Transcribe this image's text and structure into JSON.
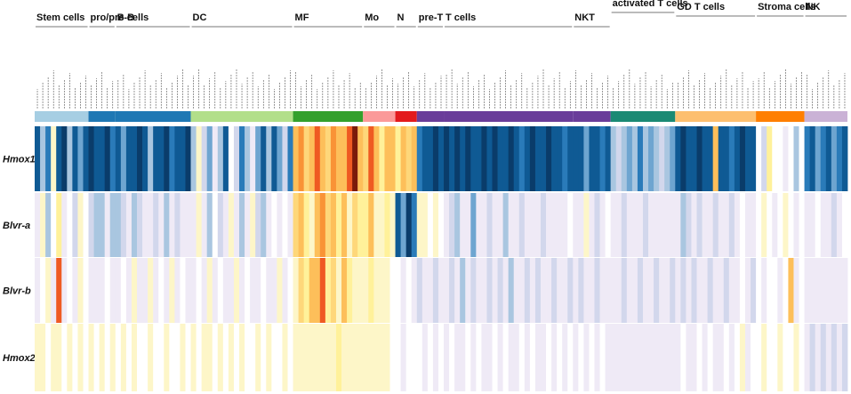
{
  "chart_data": {
    "type": "heatmap",
    "title": "",
    "color_scale": {
      "description": "diverging blue (low) to white to yellow/orange/red (high), dark = strongest",
      "colors": [
        "#0a3c6a",
        "#0f5a94",
        "#2a7bb9",
        "#6ea5d0",
        "#a9c6e0",
        "#d2d7ec",
        "#efeaf6",
        "#ffffff",
        "#fdf6c8",
        "#fff19a",
        "#fed77a",
        "#fdbf5a",
        "#f99336",
        "#ef5a22",
        "#7a1a0a"
      ]
    },
    "genes": [
      "Hmox1",
      "Blvr-a",
      "Blvr-b",
      "Hmox2"
    ],
    "groups": [
      {
        "name": "Stem cells",
        "count": 10,
        "color": "#a6cee3"
      },
      {
        "name": "pro/pre-B",
        "count": 5,
        "color": "#1f78b4"
      },
      {
        "name": "B cells",
        "count": 14,
        "color": "#1f78b4"
      },
      {
        "name": "DC",
        "count": 19,
        "color": "#b2df8a"
      },
      {
        "name": "MF",
        "count": 13,
        "color": "#33a02c"
      },
      {
        "name": "Mo",
        "count": 6,
        "color": "#fb9a99"
      },
      {
        "name": "N",
        "count": 4,
        "color": "#e31a1c"
      },
      {
        "name": "pre-T",
        "count": 5,
        "color": "#6a3d9a"
      },
      {
        "name": "T cells",
        "count": 24,
        "color": "#6a3d9a"
      },
      {
        "name": "NKT",
        "count": 7,
        "color": "#6a3d9a"
      },
      {
        "name": "activated T cells",
        "count": 12,
        "color": "#1b8a74"
      },
      {
        "name": "GD T cells",
        "count": 15,
        "color": "#fdbf6f"
      },
      {
        "name": "Stroma cells",
        "count": 9,
        "color": "#ff7f00"
      },
      {
        "name": "NK",
        "count": 8,
        "color": "#cab2d6"
      }
    ],
    "values": {
      "Hmox1": {
        "Stem cells": [
          -0.9,
          -0.4,
          -0.7,
          0.2,
          -0.9,
          -1.0,
          -0.5,
          -0.8,
          -0.6,
          -0.9
        ],
        "pro/pre-B": [
          -1.0,
          -0.9,
          -0.8,
          -1.0,
          -0.7
        ],
        "B cells": [
          -0.9,
          -0.6,
          -0.9,
          -0.8,
          -1.0,
          -0.9,
          -0.5,
          -0.8,
          -0.9,
          -1.0,
          -0.7,
          -0.9,
          -0.8,
          -1.0
        ],
        "DC": [
          -0.4,
          0.1,
          -0.3,
          -0.6,
          -0.2,
          -0.5,
          -0.8,
          0.0,
          -0.3,
          -0.7,
          -0.5,
          -0.2,
          -0.6,
          -0.8,
          -0.4,
          -0.9,
          -0.6,
          -0.3,
          -0.7
        ],
        "MF": [
          0.5,
          0.7,
          0.4,
          0.6,
          0.8,
          0.5,
          0.4,
          0.7,
          0.5,
          0.6,
          0.9,
          1.0,
          0.5
        ],
        "Mo": [
          0.4,
          0.8,
          0.5,
          0.3,
          0.6,
          0.5
        ],
        "N": [
          0.3,
          0.5,
          0.4,
          0.6
        ],
        "pre-T": [
          -0.7,
          -0.9,
          -0.8,
          -1.0,
          -0.9
        ],
        "T cells": [
          -1.0,
          -0.9,
          -1.0,
          -0.8,
          -1.0,
          -0.9,
          -0.8,
          -1.0,
          -0.9,
          -1.0,
          -0.8,
          -0.9,
          -1.0,
          -0.9,
          -0.7,
          -0.9,
          -1.0,
          -0.8,
          -0.9,
          -1.0,
          -0.8,
          -0.9,
          -0.7,
          -0.9
        ],
        "NKT": [
          -0.8,
          -0.9,
          -0.6,
          -0.8,
          -0.9,
          -0.7,
          -0.8
        ],
        "activated T cells": [
          -0.5,
          -0.3,
          -0.4,
          -0.6,
          -0.5,
          -0.7,
          -0.4,
          -0.6,
          -0.5,
          -0.3,
          -0.4,
          -0.6
        ],
        "GD T cells": [
          -0.9,
          -1.0,
          -0.8,
          -0.9,
          -1.0,
          -0.8,
          -0.9,
          0.6,
          -0.8,
          -0.9,
          -0.7,
          -0.9,
          -1.0,
          -0.8,
          -0.9
        ],
        "Stroma cells": [
          0.0,
          -0.3,
          0.3,
          0.0,
          0.0,
          -0.2,
          0.0,
          -0.4,
          0.0
        ],
        "NK": [
          -0.7,
          -0.8,
          -0.6,
          -0.7,
          -0.8,
          -0.6,
          -0.7,
          -0.8
        ]
      },
      "Blvr-a": {
        "Stem cells": [
          -0.1,
          0.2,
          -0.4,
          0.0,
          0.3,
          -0.2,
          0.0,
          -0.3,
          0.1,
          0.0
        ],
        "pro/pre-B": [
          -0.3,
          -0.5,
          -0.4,
          -0.2,
          -0.4
        ],
        "B cells": [
          -0.5,
          -0.3,
          -0.2,
          -0.4,
          -0.3,
          -0.2,
          -0.1,
          -0.3,
          -0.2,
          -0.4,
          -0.1,
          -0.3,
          -0.2,
          -0.1
        ],
        "DC": [
          -0.1,
          0.2,
          -0.2,
          -0.4,
          0.0,
          -0.3,
          -0.1,
          0.1,
          -0.2,
          -0.4,
          -0.1,
          0.1,
          -0.3,
          -0.5,
          -0.1,
          0.0,
          -0.2,
          0.0,
          -0.1
        ],
        "MF": [
          0.4,
          0.6,
          0.3,
          0.2,
          0.5,
          0.7,
          0.4,
          0.5,
          0.3,
          0.6,
          0.2,
          0.4,
          0.3
        ],
        "Mo": [
          0.3,
          0.5,
          0.2,
          0.1,
          0.3,
          0.2
        ],
        "N": [
          -0.9,
          -0.6,
          -1.0,
          -0.7
        ],
        "pre-T": [
          0.1,
          0.2,
          0.0,
          0.1,
          0.0
        ],
        "T cells": [
          -0.2,
          -0.3,
          -0.5,
          -0.1,
          -0.2,
          -0.6,
          -0.1,
          -0.2,
          -0.3,
          -0.1,
          -0.2,
          -0.4,
          -0.1,
          -0.2,
          -0.3,
          -0.1,
          -0.2,
          -0.1,
          -0.3,
          -0.2,
          -0.1,
          -0.2,
          -0.1,
          0.0
        ],
        "NKT": [
          -0.1,
          -0.2,
          0.1,
          -0.1,
          -0.3,
          -0.1,
          0.0
        ],
        "activated T cells": [
          -0.2,
          -0.1,
          -0.3,
          -0.1,
          -0.2,
          -0.1,
          -0.3,
          -0.2,
          -0.1,
          -0.2,
          -0.1,
          -0.2
        ],
        "GD T cells": [
          -0.2,
          -0.4,
          -0.3,
          -0.2,
          -0.3,
          -0.1,
          -0.2,
          -0.3,
          -0.1,
          -0.2,
          -0.3,
          -0.1,
          0.0,
          -0.2,
          -0.1
        ],
        "Stroma cells": [
          0.0,
          0.1,
          0.0,
          -0.2,
          0.0,
          0.1,
          0.0,
          -0.1,
          0.0
        ],
        "NK": [
          -0.2,
          -0.1,
          0.0,
          -0.2,
          -0.1,
          -0.3,
          -0.1,
          0.0
        ]
      },
      "Blvr-b": {
        "Stem cells": [
          -0.1,
          0.0,
          0.2,
          -0.1,
          0.9,
          -0.1,
          0.0,
          -0.2,
          0.1,
          0.0
        ],
        "pro/pre-B": [
          -0.1,
          -0.2,
          -0.1,
          0.0,
          -0.1
        ],
        "B cells": [
          -0.2,
          0.0,
          -0.1,
          0.2,
          -0.1,
          -0.2,
          0.1,
          -0.1,
          0.0,
          -0.2,
          0.2,
          -0.1,
          0.0,
          -0.1
        ],
        "DC": [
          -0.1,
          0.0,
          -0.2,
          0.1,
          -0.1,
          0.0,
          -0.2,
          -0.1,
          0.1,
          -0.2,
          0.0,
          -0.1,
          -0.2,
          0.0,
          -0.1,
          -0.2,
          0.1,
          -0.1,
          0.0
        ],
        "MF": [
          0.2,
          0.4,
          0.3,
          0.5,
          0.6,
          0.8,
          0.3,
          0.4,
          0.2,
          0.5,
          0.3,
          0.2,
          0.1
        ],
        "Mo": [
          0.2,
          0.3,
          0.1,
          0.2,
          0.1,
          0.0
        ],
        "N": [
          0.0,
          -0.1,
          0.0,
          -0.1
        ],
        "pre-T": [
          -0.3,
          -0.2,
          -0.2,
          -0.3,
          -0.2
        ],
        "T cells": [
          -0.2,
          -0.3,
          -0.2,
          -0.4,
          -0.2,
          -0.3,
          -0.2,
          -0.2,
          -0.3,
          -0.2,
          -0.3,
          -0.2,
          -0.4,
          -0.2,
          -0.2,
          -0.3,
          -0.2,
          -0.3,
          -0.2,
          -0.2,
          -0.3,
          -0.2,
          -0.2,
          -0.3
        ],
        "NKT": [
          -0.2,
          -0.3,
          -0.2,
          -0.2,
          -0.3,
          -0.2,
          -0.2
        ],
        "activated T cells": [
          -0.2,
          -0.2,
          -0.3,
          -0.2,
          -0.2,
          -0.3,
          -0.2,
          -0.2,
          -0.3,
          -0.2,
          -0.2,
          -0.3
        ],
        "GD T cells": [
          -0.2,
          -0.3,
          -0.2,
          -0.3,
          -0.2,
          -0.2,
          -0.3,
          -0.2,
          -0.2,
          -0.3,
          -0.2,
          -0.2,
          0.0,
          -0.2,
          -0.3
        ],
        "Stroma cells": [
          0.0,
          -0.1,
          0.0,
          0.0,
          -0.1,
          0.0,
          0.5,
          -0.1,
          0.0
        ],
        "NK": [
          -0.1,
          -0.2,
          -0.1,
          -0.2,
          -0.1,
          -0.2,
          -0.1,
          -0.2
        ]
      },
      "Hmox2": {
        "Stem cells": [
          0.1,
          0.2,
          0.0,
          0.1,
          0.2,
          0.0,
          0.1,
          0.0,
          0.1,
          0.0
        ],
        "pro/pre-B": [
          0.1,
          0.0,
          0.1,
          0.0,
          0.1
        ],
        "B cells": [
          0.0,
          0.1,
          0.0,
          0.1,
          0.0,
          0.0,
          0.1,
          0.0,
          0.0,
          0.1,
          0.0,
          0.0,
          0.1,
          0.0
        ],
        "DC": [
          0.1,
          0.0,
          0.1,
          0.2,
          0.0,
          0.1,
          0.0,
          0.1,
          0.0,
          0.1,
          0.0,
          0.0,
          0.1,
          0.0,
          0.1,
          0.0,
          0.0,
          0.1,
          0.0
        ],
        "MF": [
          0.1,
          0.2,
          0.1,
          0.2,
          0.1,
          0.2,
          0.1,
          0.2,
          0.3,
          0.2,
          0.1,
          0.2,
          0.1
        ],
        "Mo": [
          0.1,
          0.2,
          0.1,
          0.2,
          0.1,
          0.0
        ],
        "N": [
          0.0,
          -0.1,
          0.0,
          0.0
        ],
        "pre-T": [
          0.0,
          -0.1,
          0.0,
          -0.1,
          0.0
        ],
        "T cells": [
          -0.1,
          0.0,
          -0.1,
          -0.1,
          0.0,
          -0.1,
          0.0,
          -0.1,
          -0.1,
          0.0,
          -0.1,
          0.0,
          -0.1,
          -0.1,
          0.0,
          -0.1,
          0.0,
          -0.1,
          -0.1,
          0.0,
          -0.1,
          0.0,
          -0.1,
          0.0
        ],
        "NKT": [
          -0.1,
          0.0,
          -0.1,
          0.0,
          -0.1,
          0.0,
          -0.1
        ],
        "activated T cells": [
          -0.1,
          -0.2,
          -0.1,
          -0.1,
          -0.2,
          -0.1,
          -0.1,
          -0.2,
          -0.1,
          -0.1,
          -0.2,
          -0.1
        ],
        "GD T cells": [
          -0.1,
          0.0,
          -0.1,
          -0.1,
          0.0,
          -0.1,
          0.0,
          -0.1,
          -0.1,
          0.0,
          -0.1,
          0.0,
          0.1,
          -0.1,
          0.0
        ],
        "Stroma cells": [
          0.0,
          0.1,
          0.0,
          0.0,
          0.1,
          0.0,
          0.0,
          0.1,
          0.0
        ],
        "NK": [
          -0.2,
          -0.3,
          -0.2,
          -0.3,
          -0.2,
          -0.3,
          -0.2,
          -0.3
        ]
      }
    }
  }
}
